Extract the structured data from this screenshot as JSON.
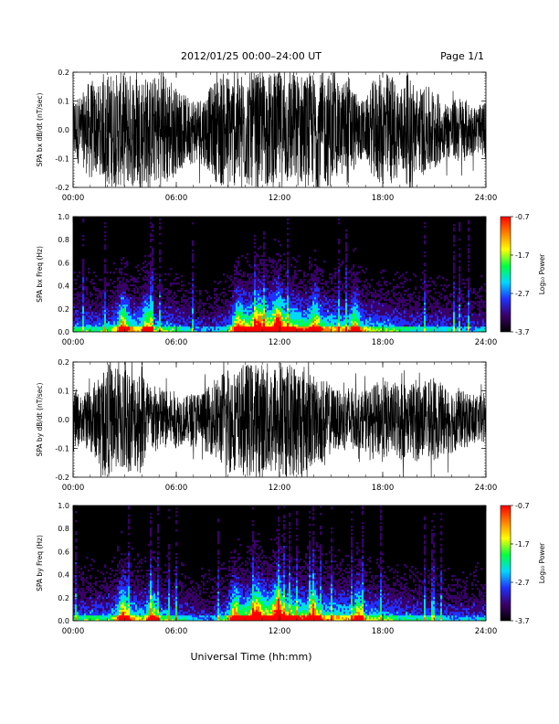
{
  "header": {
    "title": "2012/01/25  00:00–24:00 UT",
    "page": "Page 1/1"
  },
  "xlabel": "Universal Time (hh:mm)",
  "chart_data": [
    {
      "type": "line",
      "title": "",
      "ylabel": "SPA bx dB/dt (nT/sec)",
      "x_ticks": [
        "00:00",
        "06:00",
        "12:00",
        "18:00",
        "24:00"
      ],
      "y_ticks": [
        "-0.2",
        "-0.1",
        "0.0",
        "0.1",
        "0.2"
      ],
      "xlim": [
        0,
        24
      ],
      "ylim": [
        -0.2,
        0.2
      ],
      "units": {
        "x": "hours UT",
        "y": "nT/sec"
      },
      "series": [
        {
          "color": "#000000",
          "envelope_hours": [
            0,
            0.5,
            1,
            1.5,
            2,
            2.5,
            3,
            3.5,
            4,
            4.5,
            5,
            5.5,
            6,
            6.5,
            7,
            7.5,
            8,
            8.5,
            9,
            9.5,
            10,
            10.5,
            11,
            11.5,
            12,
            12.5,
            13,
            13.5,
            14,
            14.5,
            15,
            15.5,
            16,
            16.5,
            17,
            17.5,
            18,
            18.5,
            19,
            19.5,
            20,
            20.5,
            21,
            21.5,
            22,
            22.5,
            23,
            23.5,
            24
          ],
          "envelope_amplitude": [
            0.12,
            0.12,
            0.18,
            0.15,
            0.2,
            0.2,
            0.2,
            0.2,
            0.2,
            0.18,
            0.2,
            0.2,
            0.15,
            0.12,
            0.12,
            0.12,
            0.15,
            0.2,
            0.2,
            0.2,
            0.2,
            0.2,
            0.2,
            0.2,
            0.2,
            0.2,
            0.2,
            0.2,
            0.2,
            0.2,
            0.2,
            0.15,
            0.2,
            0.12,
            0.1,
            0.18,
            0.2,
            0.2,
            0.15,
            0.2,
            0.15,
            0.15,
            0.15,
            0.1,
            0.1,
            0.12,
            0.1,
            0.08,
            0.1
          ]
        }
      ]
    },
    {
      "type": "heatmap",
      "title": "",
      "ylabel": "SPA bx Freq (Hz)",
      "x_ticks": [
        "00:00",
        "06:00",
        "12:00",
        "18:00",
        "24:00"
      ],
      "y_ticks": [
        "0.0",
        "0.2",
        "0.4",
        "0.6",
        "0.8",
        "1.0"
      ],
      "xlim": [
        0,
        24
      ],
      "ylim": [
        0,
        1.0
      ],
      "colorbar": {
        "label": "Log₁₀ Power",
        "ticks": [
          "-0.7",
          "-1.7",
          "-2.7",
          "-3.7"
        ],
        "range": [
          -3.7,
          -0.7
        ],
        "colors": [
          "#000000",
          "#3a006a",
          "#2030ff",
          "#00d8ff",
          "#00ff40",
          "#ffff00",
          "#ff8000",
          "#ff0000"
        ]
      },
      "activity_hours": [
        0,
        1,
        2,
        3,
        4,
        5,
        6,
        7,
        8,
        9,
        10,
        11,
        12,
        13,
        14,
        15,
        16,
        17,
        18,
        19,
        20,
        21,
        22,
        23,
        24
      ],
      "activity_level": [
        0.45,
        0.45,
        0.45,
        0.7,
        0.55,
        0.5,
        0.45,
        0.35,
        0.3,
        0.45,
        0.85,
        0.9,
        1.0,
        0.8,
        0.7,
        0.65,
        0.6,
        0.55,
        0.5,
        0.45,
        0.4,
        0.4,
        0.35,
        0.35,
        0.35
      ],
      "bursts_hours": [
        2.9,
        4.3,
        9.6,
        10.8,
        11.9,
        14.1,
        16.4
      ]
    },
    {
      "type": "line",
      "title": "",
      "ylabel": "SPA by dB/dt (nT/sec)",
      "x_ticks": [
        "00:00",
        "06:00",
        "12:00",
        "18:00",
        "24:00"
      ],
      "y_ticks": [
        "-0.2",
        "-0.1",
        "0.0",
        "0.1",
        "0.2"
      ],
      "xlim": [
        0,
        24
      ],
      "ylim": [
        -0.2,
        0.2
      ],
      "units": {
        "x": "hours UT",
        "y": "nT/sec"
      },
      "series": [
        {
          "color": "#000000",
          "envelope_hours": [
            0,
            0.5,
            1,
            1.5,
            2,
            2.5,
            3,
            3.5,
            4,
            4.5,
            5,
            5.5,
            6,
            6.5,
            7,
            7.5,
            8,
            8.5,
            9,
            9.5,
            10,
            10.5,
            11,
            11.5,
            12,
            12.5,
            13,
            13.5,
            14,
            14.5,
            15,
            15.5,
            16,
            16.5,
            17,
            17.5,
            18,
            18.5,
            19,
            19.5,
            20,
            20.5,
            21,
            21.5,
            22,
            22.5,
            23,
            23.5,
            24
          ],
          "envelope_amplitude": [
            0.12,
            0.08,
            0.12,
            0.15,
            0.2,
            0.18,
            0.2,
            0.17,
            0.2,
            0.12,
            0.12,
            0.1,
            0.1,
            0.08,
            0.1,
            0.1,
            0.12,
            0.15,
            0.2,
            0.17,
            0.2,
            0.2,
            0.2,
            0.2,
            0.2,
            0.2,
            0.2,
            0.2,
            0.15,
            0.15,
            0.12,
            0.1,
            0.12,
            0.1,
            0.1,
            0.12,
            0.15,
            0.12,
            0.15,
            0.12,
            0.15,
            0.12,
            0.15,
            0.12,
            0.12,
            0.1,
            0.1,
            0.08,
            0.1
          ]
        }
      ]
    },
    {
      "type": "heatmap",
      "title": "",
      "ylabel": "SPA by Freq (Hz)",
      "x_ticks": [
        "00:00",
        "06:00",
        "12:00",
        "18:00",
        "24:00"
      ],
      "y_ticks": [
        "0.0",
        "0.2",
        "0.4",
        "0.6",
        "0.8",
        "1.0"
      ],
      "xlim": [
        0,
        24
      ],
      "ylim": [
        0,
        1.0
      ],
      "colorbar": {
        "label": "Log₁₀ Power",
        "ticks": [
          "-0.7",
          "-1.7",
          "-2.7",
          "-3.7"
        ],
        "range": [
          -3.7,
          -0.7
        ],
        "colors": [
          "#000000",
          "#3a006a",
          "#2030ff",
          "#00d8ff",
          "#00ff40",
          "#ffff00",
          "#ff8000",
          "#ff0000"
        ]
      },
      "activity_hours": [
        0,
        1,
        2,
        3,
        4,
        5,
        6,
        7,
        8,
        9,
        10,
        11,
        12,
        13,
        14,
        15,
        16,
        17,
        18,
        19,
        20,
        21,
        22,
        23,
        24
      ],
      "activity_level": [
        0.45,
        0.45,
        0.45,
        0.7,
        0.55,
        0.5,
        0.45,
        0.35,
        0.3,
        0.5,
        0.85,
        0.9,
        1.0,
        0.8,
        0.7,
        0.65,
        0.6,
        0.55,
        0.5,
        0.45,
        0.4,
        0.4,
        0.35,
        0.35,
        0.35
      ],
      "bursts_hours": [
        2.9,
        4.6,
        9.4,
        10.7,
        11.9,
        14.0,
        16.6
      ]
    }
  ]
}
